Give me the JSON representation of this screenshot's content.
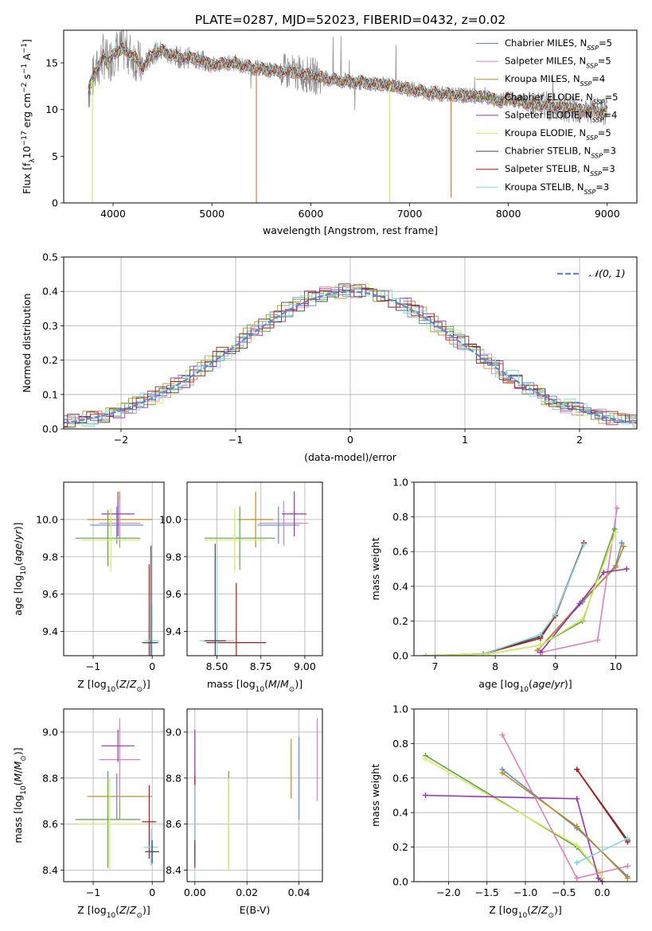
{
  "figure": {
    "title": "PLATE=0287, MJD=52023, FIBERID=0432, z=0.02"
  },
  "models": [
    {
      "key": "cm",
      "color": "#5b8bd6"
    },
    {
      "key": "sm",
      "color": "#e47eb9"
    },
    {
      "key": "km",
      "color": "#c58a18"
    },
    {
      "key": "ce",
      "color": "#5aa44a"
    },
    {
      "key": "se",
      "color": "#9b30b8"
    },
    {
      "key": "ke",
      "color": "#d8ec5c"
    },
    {
      "key": "cs",
      "color": "#444444"
    },
    {
      "key": "ss",
      "color": "#b01818"
    },
    {
      "key": "ks",
      "color": "#7ed8e2"
    }
  ],
  "chart_data": [
    {
      "id": "spectrum",
      "type": "line",
      "xlabel": "wavelength [Angstrom, rest frame]",
      "ylabel": "Flux [f_λ10^-17 erg cm^-2 s^-1 A^-1]",
      "xlim": [
        3500,
        9300
      ],
      "ylim": [
        0,
        18.5
      ],
      "xticks": [
        4000,
        5000,
        6000,
        7000,
        8000,
        9000
      ],
      "yticks": [
        0,
        5,
        10,
        15
      ],
      "grid": false,
      "legend_position": "right",
      "legend": [
        {
          "base": "Chabrier MILES, N",
          "sub": "SSP",
          "tail": "=5"
        },
        {
          "base": "Salpeter MILES, N",
          "sub": "SSP",
          "tail": "=5"
        },
        {
          "base": "Kroupa MILES, N",
          "sub": "SSP",
          "tail": "=4"
        },
        {
          "base": "Chabrier ELODIE, N",
          "sub": "SSP",
          "tail": "=5"
        },
        {
          "base": "Salpeter ELODIE, N",
          "sub": "SSP",
          "tail": "=4"
        },
        {
          "base": "Kroupa ELODIE, N",
          "sub": "SSP",
          "tail": "=5"
        },
        {
          "base": "Chabrier STELIB, N",
          "sub": "SSP",
          "tail": "=3"
        },
        {
          "base": "Salpeter STELIB, N",
          "sub": "SSP",
          "tail": "=3"
        },
        {
          "base": "Kroupa STELIB, N",
          "sub": "SSP",
          "tail": "=3"
        }
      ],
      "observed_color": "#888888",
      "model_continuum": {
        "x": [
          3750,
          3800,
          3850,
          3900,
          3950,
          4000,
          4100,
          4200,
          4300,
          4400,
          4500,
          4600,
          4700,
          4800,
          4900,
          5000,
          5200,
          5400,
          5600,
          5800,
          6000,
          6200,
          6400,
          6600,
          6800,
          7000,
          7200,
          7400,
          7600,
          7800,
          7900,
          8000,
          8200,
          8400,
          8600,
          8800,
          9000
        ],
        "y": [
          12.0,
          13.5,
          14.5,
          15.8,
          14.8,
          16.0,
          16.5,
          15.8,
          14.5,
          16.0,
          16.3,
          15.8,
          15.5,
          15.6,
          15.2,
          14.8,
          15.0,
          14.5,
          14.2,
          14.0,
          13.7,
          13.2,
          13.0,
          12.8,
          12.6,
          12.2,
          11.8,
          11.6,
          11.5,
          11.4,
          10.8,
          11.2,
          10.6,
          10.4,
          10.2,
          9.9,
          9.7
        ]
      },
      "dropouts": [
        {
          "x": 3790,
          "y": 0.0
        },
        {
          "x": 5450,
          "y": 0.0
        },
        {
          "x": 6800,
          "y": 0.0
        },
        {
          "x": 7420,
          "y": 0.6
        }
      ]
    },
    {
      "id": "residuals",
      "type": "line",
      "xlabel": "(data-model)/error",
      "ylabel": "Normed distribution",
      "xlim": [
        -2.5,
        2.5
      ],
      "ylim": [
        0,
        0.5
      ],
      "xticks": [
        -2,
        -1,
        0,
        1,
        2
      ],
      "yticks": [
        0.0,
        0.1,
        0.2,
        0.3,
        0.4,
        0.5
      ],
      "grid": true,
      "legend_position": "top-right",
      "legend_label": "𝒩(0, 1)",
      "normal_color": "#5b8bd6",
      "bin_width": 0.1
    },
    {
      "id": "age-vs-Z",
      "type": "scatter",
      "xlabel": "Z [log10(Z/Z⊙)]",
      "ylabel": "age [log10(age/yr)]",
      "xlim": [
        -1.5,
        0.2
      ],
      "ylim": [
        9.27,
        10.2
      ],
      "xticks": [
        -1,
        0
      ],
      "yticks": [
        9.4,
        9.6,
        9.8,
        10.0
      ],
      "grid": true,
      "points": [
        {
          "m": "cm",
          "x": -0.6,
          "xerr": 0.45,
          "y": 9.97,
          "yerr": 0.1
        },
        {
          "m": "km",
          "x": -0.55,
          "xerr": 0.55,
          "y": 10.0,
          "yerr": 0.15
        },
        {
          "m": "sm",
          "x": -0.55,
          "xerr": 0.35,
          "y": 9.98,
          "yerr": 0.12
        },
        {
          "m": "se",
          "x": -0.58,
          "xerr": 0.28,
          "y": 10.03,
          "yerr": 0.12
        },
        {
          "m": "ce",
          "x": -0.75,
          "xerr": 0.55,
          "y": 9.9,
          "yerr": 0.15
        },
        {
          "m": "ke",
          "x": -0.7,
          "xerr": 0.5,
          "y": 9.89,
          "yerr": 0.17
        },
        {
          "m": "ss",
          "x": -0.05,
          "xerr": 0.12,
          "y": 9.34,
          "yerr": 0.42
        },
        {
          "m": "ks",
          "x": 0.0,
          "xerr": 0.12,
          "y": 9.35,
          "yerr": 0.2
        },
        {
          "m": "cs",
          "x": -0.02,
          "xerr": 0.12,
          "y": 9.34,
          "yerr": 0.52
        }
      ]
    },
    {
      "id": "age-vs-mass",
      "type": "scatter",
      "xlabel": "mass [log10(M/M⊙)]",
      "ylabel": "",
      "xlim": [
        8.33,
        9.1
      ],
      "ylim": [
        9.27,
        10.2
      ],
      "xticks": [
        8.5,
        8.75,
        9.0
      ],
      "xtick_labels": [
        "8.50",
        "8.75",
        "9.00"
      ],
      "yticks": [
        9.4,
        9.6,
        9.8,
        10.0
      ],
      "grid": true,
      "points": [
        {
          "m": "cm",
          "x": 8.85,
          "xerr": 0.12,
          "y": 9.97,
          "yerr": 0.1
        },
        {
          "m": "km",
          "x": 8.72,
          "xerr": 0.1,
          "y": 10.0,
          "yerr": 0.15
        },
        {
          "m": "sm",
          "x": 8.88,
          "xerr": 0.14,
          "y": 9.98,
          "yerr": 0.12
        },
        {
          "m": "se",
          "x": 8.94,
          "xerr": 0.07,
          "y": 10.03,
          "yerr": 0.12
        },
        {
          "m": "ce",
          "x": 8.63,
          "xerr": 0.2,
          "y": 9.9,
          "yerr": 0.17
        },
        {
          "m": "ke",
          "x": 8.6,
          "xerr": 0.17,
          "y": 9.89,
          "yerr": 0.17
        },
        {
          "m": "ss",
          "x": 8.61,
          "xerr": 0.17,
          "y": 9.34,
          "yerr": 0.32
        },
        {
          "m": "ks",
          "x": 8.5,
          "xerr": 0.1,
          "y": 9.35,
          "yerr": 0.46
        },
        {
          "m": "cs",
          "x": 8.49,
          "xerr": 0.06,
          "y": 9.35,
          "yerr": 0.52
        }
      ]
    },
    {
      "id": "weight-vs-age",
      "type": "line",
      "xlabel": "age [log10(age/yr)]",
      "ylabel": "mass weight",
      "xlim": [
        6.65,
        10.35
      ],
      "ylim": [
        0,
        1
      ],
      "xticks": [
        7,
        8,
        9,
        10
      ],
      "yticks": [
        0.0,
        0.2,
        0.4,
        0.6,
        0.8,
        1.0
      ],
      "grid": true,
      "series": [
        {
          "m": "cs",
          "x": [
            6.85,
            7.8,
            8.75,
            9.0,
            9.47
          ],
          "y": [
            0.0,
            0.01,
            0.11,
            0.24,
            0.65
          ]
        },
        {
          "m": "ss",
          "x": [
            6.85,
            7.8,
            8.75,
            9.0,
            9.47
          ],
          "y": [
            0.0,
            0.01,
            0.1,
            0.23,
            0.65
          ]
        },
        {
          "m": "ks",
          "x": [
            6.85,
            7.8,
            8.75,
            9.0,
            9.47
          ],
          "y": [
            0.0,
            0.01,
            0.12,
            0.24,
            0.64
          ]
        },
        {
          "m": "cm",
          "x": [
            8.7,
            9.45,
            10.0,
            10.1
          ],
          "y": [
            0.03,
            0.31,
            0.52,
            0.65
          ]
        },
        {
          "m": "km",
          "x": [
            8.7,
            9.45,
            10.0,
            10.13
          ],
          "y": [
            0.03,
            0.32,
            0.51,
            0.63
          ]
        },
        {
          "m": "sm",
          "x": [
            8.78,
            9.7,
            10.02
          ],
          "y": [
            0.02,
            0.09,
            0.85
          ]
        },
        {
          "m": "se",
          "x": [
            8.75,
            9.4,
            9.8,
            10.18
          ],
          "y": [
            0.02,
            0.3,
            0.48,
            0.5
          ]
        },
        {
          "m": "ce",
          "x": [
            6.85,
            7.9,
            8.75,
            9.45,
            9.98
          ],
          "y": [
            0.0,
            0.01,
            0.06,
            0.2,
            0.73
          ]
        },
        {
          "m": "ke",
          "x": [
            6.85,
            7.9,
            8.75,
            9.45,
            10.0
          ],
          "y": [
            0.0,
            0.01,
            0.06,
            0.21,
            0.71
          ]
        }
      ]
    },
    {
      "id": "mass-vs-Z",
      "type": "scatter",
      "xlabel": "Z [log10(Z/Z⊙)]",
      "ylabel": "mass [log10(M/M⊙)]",
      "xlim": [
        -1.5,
        0.2
      ],
      "ylim": [
        8.35,
        9.1
      ],
      "xticks": [
        -1,
        0
      ],
      "yticks": [
        8.4,
        8.6,
        8.8,
        9.0
      ],
      "grid": true,
      "points": [
        {
          "m": "cm",
          "x": -0.6,
          "xerr": 0.45,
          "y": 8.72,
          "yerr": 0.1
        },
        {
          "m": "km",
          "x": -0.55,
          "xerr": 0.55,
          "y": 8.72,
          "yerr": 0.1
        },
        {
          "m": "sm",
          "x": -0.55,
          "xerr": 0.35,
          "y": 8.88,
          "yerr": 0.18
        },
        {
          "m": "se",
          "x": -0.58,
          "xerr": 0.28,
          "y": 8.94,
          "yerr": 0.07
        },
        {
          "m": "ce",
          "x": -0.75,
          "xerr": 0.55,
          "y": 8.62,
          "yerr": 0.21
        },
        {
          "m": "ke",
          "x": -0.72,
          "xerr": 0.55,
          "y": 8.6,
          "yerr": 0.2
        },
        {
          "m": "ss",
          "x": -0.05,
          "xerr": 0.12,
          "y": 8.61,
          "yerr": 0.16
        },
        {
          "m": "ks",
          "x": -0.02,
          "xerr": 0.12,
          "y": 8.5,
          "yerr": 0.08
        },
        {
          "m": "cs",
          "x": 0.0,
          "xerr": 0.12,
          "y": 8.48,
          "yerr": 0.05
        }
      ]
    },
    {
      "id": "mass-vs-EBV",
      "type": "scatter",
      "xlabel": "E(B-V)",
      "ylabel": "",
      "xlim": [
        -0.003,
        0.049
      ],
      "ylim": [
        8.35,
        9.1
      ],
      "xticks": [
        0.0,
        0.02,
        0.04
      ],
      "xtick_labels": [
        "0.00",
        "0.02",
        "0.04"
      ],
      "yticks": [
        8.4,
        8.6,
        8.8,
        9.0
      ],
      "grid": true,
      "points": [
        {
          "m": "cm",
          "x": 0.04,
          "y": 8.8,
          "yerr": 0.18
        },
        {
          "m": "km",
          "x": 0.037,
          "y": 8.84,
          "yerr": 0.13
        },
        {
          "m": "sm",
          "x": 0.047,
          "y": 8.88,
          "yerr": 0.18
        },
        {
          "m": "se",
          "x": 0.0,
          "y": 8.88,
          "yerr": 0.13
        },
        {
          "m": "ce",
          "x": 0.013,
          "y": 8.62,
          "yerr": 0.21
        },
        {
          "m": "ke",
          "x": 0.013,
          "y": 8.6,
          "yerr": 0.2
        },
        {
          "m": "ss",
          "x": 0.0,
          "y": 8.61,
          "yerr": 0.2
        },
        {
          "m": "ks",
          "x": 0.0,
          "y": 8.6,
          "yerr": 0.17
        },
        {
          "m": "cs",
          "x": 0.0,
          "y": 8.48,
          "yerr": 0.05
        }
      ]
    },
    {
      "id": "weight-vs-Z",
      "type": "line",
      "xlabel": "Z [log10(Z/Z⊙)]",
      "ylabel": "mass weight",
      "xlim": [
        -2.45,
        0.45
      ],
      "ylim": [
        0,
        1
      ],
      "xticks": [
        -2.0,
        -1.5,
        -1.0,
        -0.5,
        0.0
      ],
      "xtick_labels": [
        "−2.0",
        "−1.5",
        "−1.0",
        "−0.5",
        "0.0"
      ],
      "yticks": [
        0.0,
        0.2,
        0.4,
        0.6,
        0.8,
        1.0
      ],
      "grid": true,
      "series": [
        {
          "m": "ce",
          "x": [
            -2.3,
            -0.33,
            -0.05,
            0.0
          ],
          "y": [
            0.73,
            0.2,
            0.06,
            0.02
          ]
        },
        {
          "m": "ke",
          "x": [
            -2.3,
            -0.33,
            -0.05,
            0.0
          ],
          "y": [
            0.71,
            0.21,
            0.06,
            0.02
          ]
        },
        {
          "m": "se",
          "x": [
            -2.3,
            -0.33,
            -0.05,
            0.0
          ],
          "y": [
            0.5,
            0.48,
            0.02,
            0.0
          ]
        },
        {
          "m": "sm",
          "x": [
            -1.3,
            -0.33,
            0.33
          ],
          "y": [
            0.85,
            0.02,
            0.09
          ]
        },
        {
          "m": "cm",
          "x": [
            -1.3,
            -0.33,
            0.33
          ],
          "y": [
            0.65,
            0.31,
            0.03
          ]
        },
        {
          "m": "km",
          "x": [
            -1.3,
            -0.33,
            0.33
          ],
          "y": [
            0.63,
            0.32,
            0.02
          ]
        },
        {
          "m": "cs",
          "x": [
            -0.33,
            0.33
          ],
          "y": [
            0.65,
            0.24
          ]
        },
        {
          "m": "ss",
          "x": [
            -0.33,
            0.33
          ],
          "y": [
            0.65,
            0.23
          ]
        },
        {
          "m": "ks",
          "x": [
            -0.33,
            0.33
          ],
          "y": [
            0.11,
            0.25
          ]
        }
      ]
    }
  ]
}
